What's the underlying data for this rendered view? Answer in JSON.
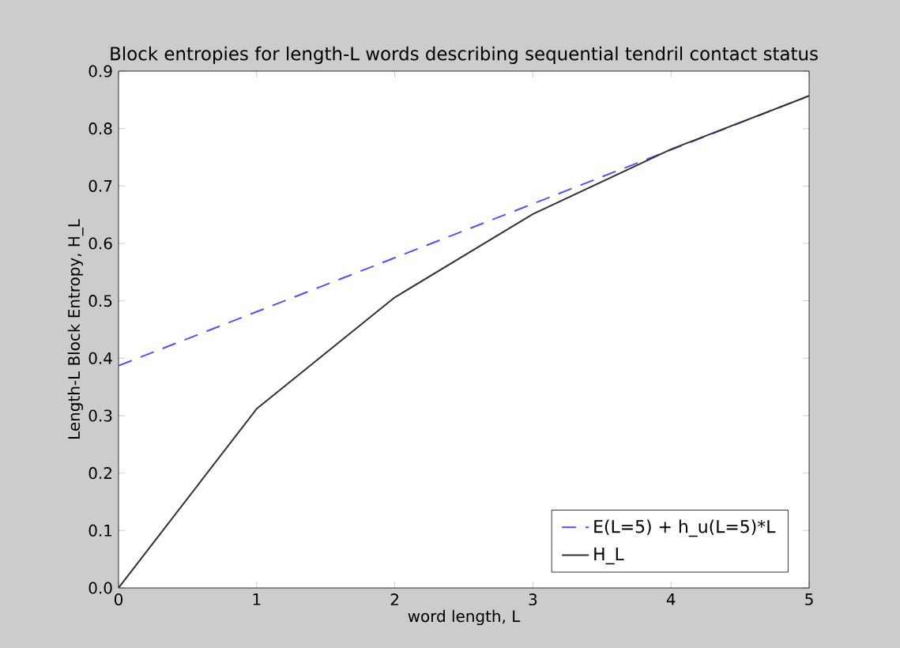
{
  "chart_data": {
    "type": "line",
    "title": "Block entropies for length-L words describing sequential tendril contact status",
    "xlabel": "word length,  L",
    "ylabel": "Length-L Block Entropy,  H_L",
    "xlim": [
      0,
      5
    ],
    "ylim": [
      0,
      0.9
    ],
    "xticks": [
      0,
      1,
      2,
      3,
      4,
      5
    ],
    "yticks": [
      {
        "value": 0,
        "label": "0.0"
      },
      0.1,
      0.2,
      0.3,
      0.4,
      0.5,
      0.6,
      0.7,
      0.8,
      0.9
    ],
    "legend": "bottom right",
    "grid": false,
    "marker": "none",
    "series": [
      {
        "name": "E(L=5) + h_u(L=5)*L",
        "color": "#5050ff",
        "line_style": "dashed",
        "x": [
          0,
          5
        ],
        "values": [
          0.387,
          0.857
        ]
      },
      {
        "name": "H_L",
        "color": "#333333",
        "line_style": "solid",
        "x": [
          0,
          1,
          2,
          3,
          4,
          5
        ],
        "values": [
          0.0,
          0.312,
          0.506,
          0.651,
          0.764,
          0.857
        ]
      }
    ]
  }
}
